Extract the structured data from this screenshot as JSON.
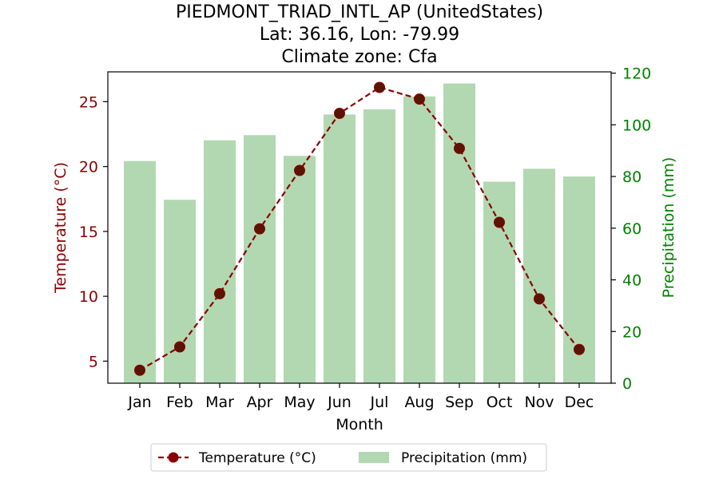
{
  "chart_data": {
    "type": "bar",
    "title_lines": [
      "PIEDMONT_TRIAD_INTL_AP (UnitedStates)",
      "Lat: 36.16, Lon: -79.99",
      "Climate zone: Cfa"
    ],
    "xlabel": "Month",
    "ylabel_left": "Temperature (°C)",
    "ylabel_right": "Precipitation (mm)",
    "categories": [
      "Jan",
      "Feb",
      "Mar",
      "Apr",
      "May",
      "Jun",
      "Jul",
      "Aug",
      "Sep",
      "Oct",
      "Nov",
      "Dec"
    ],
    "series": [
      {
        "name": "Temperature (°C)",
        "type": "line",
        "axis": "left",
        "values": [
          4.3,
          6.1,
          10.2,
          15.2,
          19.7,
          24.1,
          26.1,
          25.2,
          21.4,
          15.7,
          9.8,
          5.9
        ]
      },
      {
        "name": "Precipitation (mm)",
        "type": "bar",
        "axis": "right",
        "values": [
          86,
          71,
          94,
          96,
          88,
          104,
          106,
          111,
          116,
          78,
          83,
          80
        ]
      }
    ],
    "ylim_left": [
      3.3,
      27.3
    ],
    "yticks_left": [
      5,
      10,
      15,
      20,
      25
    ],
    "ylim_right": [
      0,
      120.5
    ],
    "yticks_right": [
      0,
      20,
      40,
      60,
      80,
      100,
      120
    ],
    "colors": {
      "temperature": "#8b0000",
      "precipitation": "#b2d8b2",
      "right_axis": "#008000"
    },
    "legend_placement": "bottom-center",
    "grid": false
  }
}
